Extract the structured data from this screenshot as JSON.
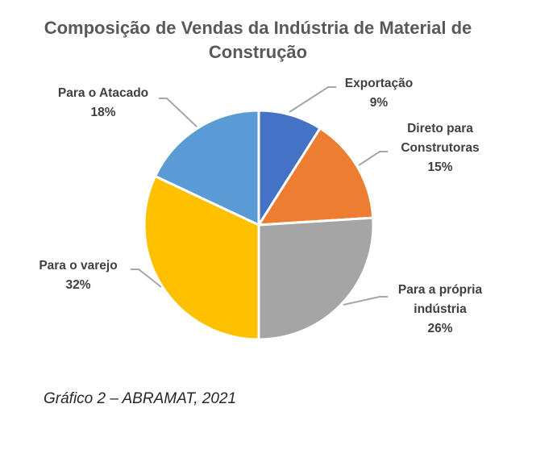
{
  "chart_data": {
    "type": "pie",
    "title": "Composição de Vendas da Indústria de Material de Construção",
    "title_lines": [
      "Composição de Vendas da Indústria de Material de",
      "Construção"
    ],
    "categories": [
      "Exportação",
      "Direto para Construtoras",
      "Para a própria indústria",
      "Para o varejo",
      "Para o Atacado"
    ],
    "values": [
      9,
      15,
      26,
      32,
      18
    ],
    "unit": "%",
    "colors": [
      "#4472C4",
      "#ED7D31",
      "#A5A5A5",
      "#FFC000",
      "#5B9BD5"
    ],
    "start_angle_deg": 0,
    "direction": "clockwise",
    "legend": "none (data labels with leader lines)",
    "labels": [
      {
        "lines": [
          "Exportação"
        ],
        "pct": "9%"
      },
      {
        "lines": [
          "Direto para",
          "Construtoras"
        ],
        "pct": "15%"
      },
      {
        "lines": [
          "Para a própria",
          "indústria"
        ],
        "pct": "26%"
      },
      {
        "lines": [
          "Para o varejo"
        ],
        "pct": "32%"
      },
      {
        "lines": [
          "Para o Atacado"
        ],
        "pct": "18%"
      }
    ]
  },
  "caption": "Gráfico 2 – ABRAMAT, 2021"
}
